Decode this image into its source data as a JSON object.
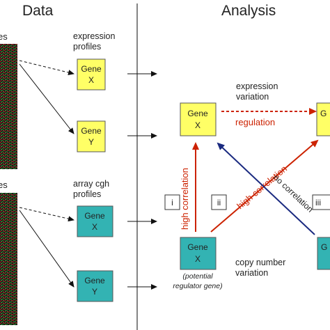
{
  "headers": {
    "data": "Data",
    "analysis": "Analysis"
  },
  "left_labels": {
    "top_partial": "es",
    "bottom_partial": "es"
  },
  "sections": {
    "expression": {
      "line1": "expression",
      "line2": "profiles"
    },
    "cgh": {
      "line1": "array cgh",
      "line2": "profiles"
    }
  },
  "boxes": {
    "expr_x": {
      "line1": "Gene",
      "line2": "X"
    },
    "expr_y": {
      "line1": "Gene",
      "line2": "Y"
    },
    "cgh_x": {
      "line1": "Gene",
      "line2": "X"
    },
    "cgh_y": {
      "line1": "Gene",
      "line2": "Y"
    },
    "analysis_top_x": {
      "line1": "Gene",
      "line2": "X"
    },
    "analysis_top_right": {
      "line1": "G",
      "line2": ""
    },
    "analysis_bottom_x": {
      "line1": "Gene",
      "line2": "X"
    },
    "analysis_bottom_right": {
      "line1": "G",
      "line2": ""
    }
  },
  "analysis_labels": {
    "expression_variation": {
      "line1": "expression",
      "line2": "variation"
    },
    "regulation": "regulation",
    "high_correlation_vertical": "high correlation",
    "high_correlation_diagonal": "high correlation",
    "no_correlation": "no correlation",
    "case_i": "i",
    "case_ii": "ii",
    "case_iii": "iii",
    "potential": {
      "line1": "(potential",
      "line2": "regulator gene)"
    },
    "copy_number": {
      "line1": "copy number",
      "line2": "variation"
    }
  },
  "colors": {
    "expression_box": "#ffff66",
    "cgh_box": "#33b3b3",
    "red_arrow": "#cc2200",
    "blue_arrow": "#1a2a80",
    "divider": "#333333"
  }
}
